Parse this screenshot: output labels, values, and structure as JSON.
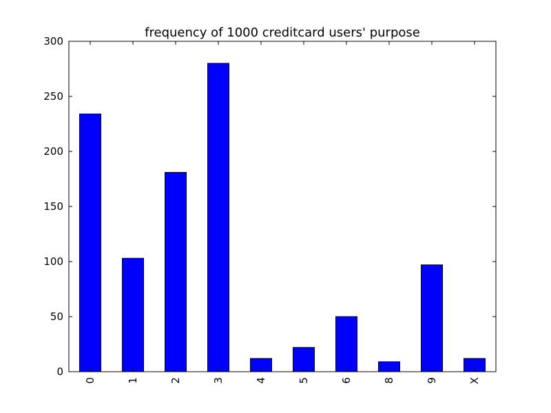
{
  "chart_data": {
    "type": "bar",
    "title": "frequency of 1000 creditcard users' purpose",
    "xlabel": "",
    "ylabel": "",
    "categories": [
      "0",
      "1",
      "2",
      "3",
      "4",
      "5",
      "6",
      "8",
      "9",
      "X"
    ],
    "values": [
      234,
      103,
      181,
      280,
      12,
      22,
      50,
      9,
      97,
      12
    ],
    "ylim": [
      0,
      300
    ],
    "yticks": [
      0,
      50,
      100,
      150,
      200,
      250,
      300
    ],
    "bar_color": "#0000ff",
    "edge_color": "#000000",
    "grid": false,
    "legend": "none"
  }
}
